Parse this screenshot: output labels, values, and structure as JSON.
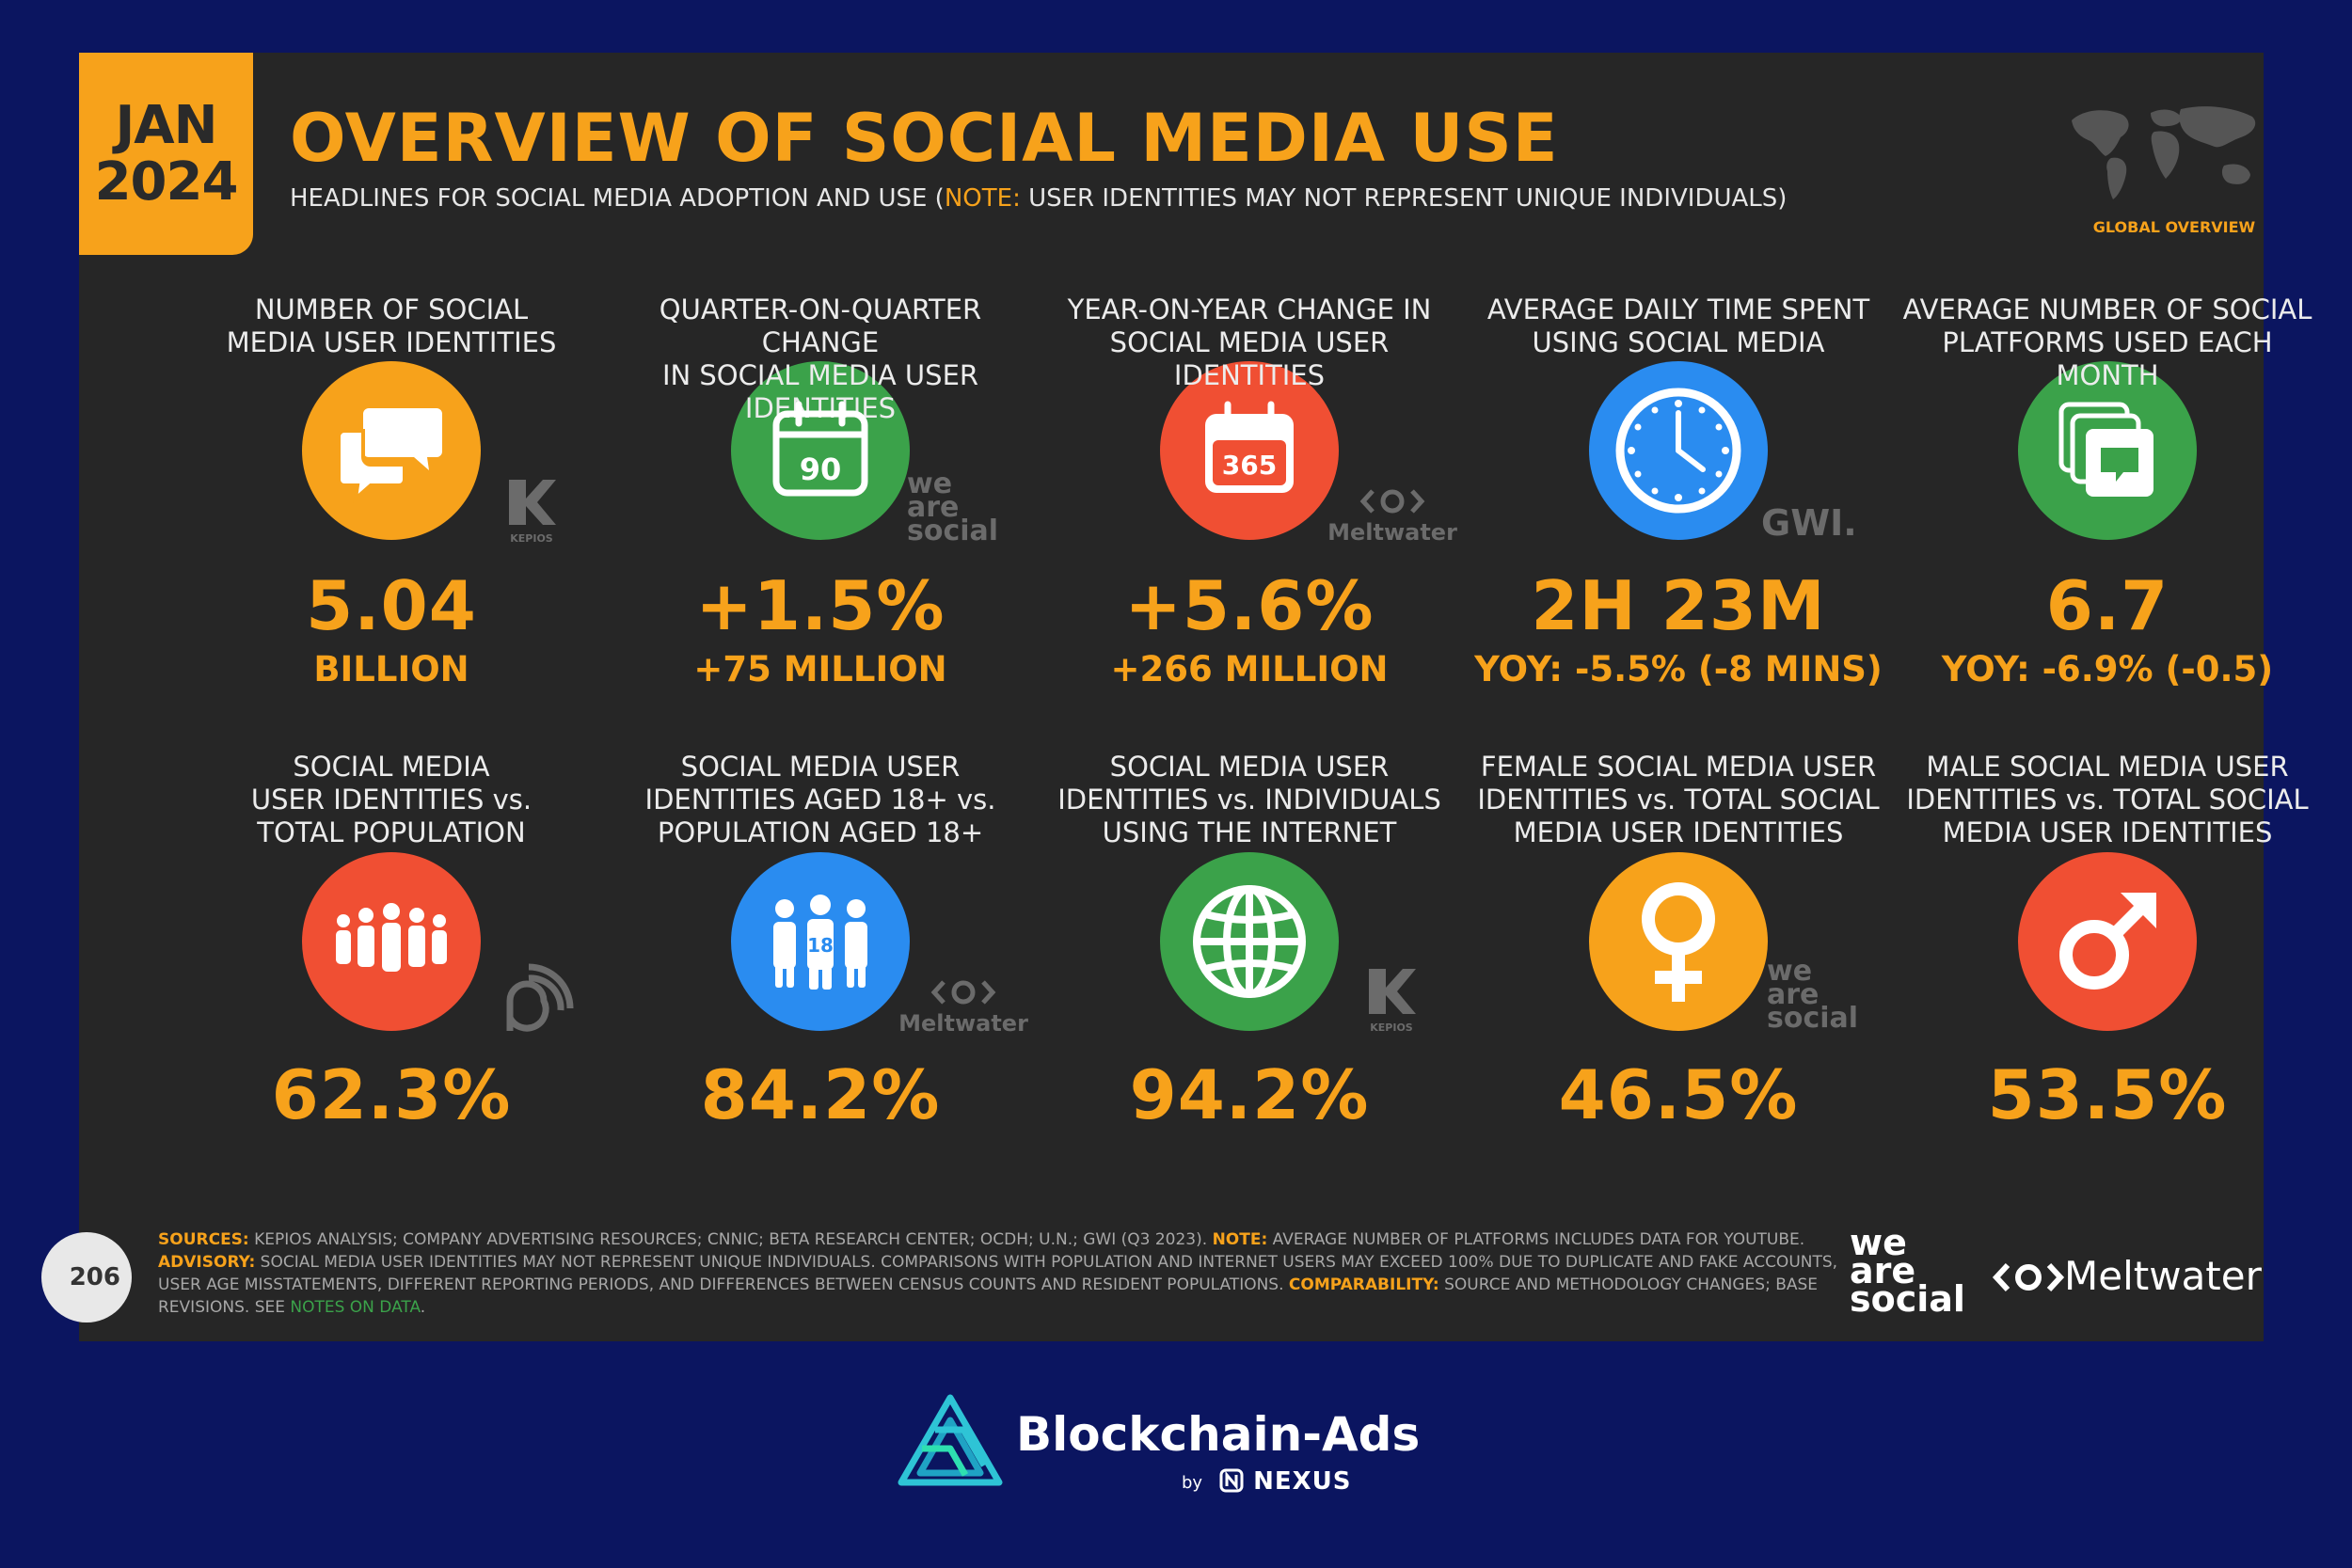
{
  "header": {
    "date_month": "JAN",
    "date_year": "2024",
    "title": "OVERVIEW OF SOCIAL MEDIA USE",
    "subtitle_pre": "HEADLINES FOR SOCIAL MEDIA ADOPTION AND USE (",
    "subtitle_note": "NOTE:",
    "subtitle_post": " USER IDENTITIES MAY NOT REPRESENT UNIQUE INDIVIDUALS)",
    "global_label": "GLOBAL OVERVIEW"
  },
  "metrics_row1": [
    {
      "label1": "NUMBER OF SOCIAL",
      "label2": "MEDIA USER IDENTITIES",
      "icon": "speech-bubbles-icon",
      "color": "#f7a21b",
      "value": "5.04",
      "sub": "BILLION"
    },
    {
      "label1": "QUARTER-ON-QUARTER CHANGE",
      "label2": "IN SOCIAL MEDIA USER IDENTITIES",
      "icon": "calendar-90-icon",
      "icon_text": "90",
      "color": "#3ba24a",
      "value": "+1.5%",
      "sub": "+75 MILLION"
    },
    {
      "label1": "YEAR-ON-YEAR CHANGE IN",
      "label2": "SOCIAL MEDIA USER IDENTITIES",
      "icon": "calendar-365-icon",
      "icon_text": "365",
      "color": "#f04f33",
      "value": "+5.6%",
      "sub": "+266 MILLION"
    },
    {
      "label1": "AVERAGE DAILY TIME SPENT",
      "label2": "USING SOCIAL MEDIA",
      "icon": "clock-icon",
      "color": "#2a8cf0",
      "value": "2H 23M",
      "sub": "YOY: -5.5% (-8 MINS)"
    },
    {
      "label1": "AVERAGE NUMBER OF SOCIAL",
      "label2": "PLATFORMS USED EACH MONTH",
      "icon": "stacked-windows-icon",
      "color": "#3ba24a",
      "value": "6.7",
      "sub": "YOY: -6.9% (-0.5)"
    }
  ],
  "metrics_row2": [
    {
      "label1": "SOCIAL MEDIA",
      "label2": "USER IDENTITIES vs.",
      "label3": "TOTAL POPULATION",
      "icon": "crowd-icon",
      "color": "#f04f33",
      "value": "62.3%"
    },
    {
      "label1": "SOCIAL MEDIA USER",
      "label2": "IDENTITIES AGED 18+ vs.",
      "label3": "POPULATION AGED 18+",
      "icon": "adults-18-icon",
      "icon_text": "18",
      "color": "#2a8cf0",
      "value": "84.2%"
    },
    {
      "label1": "SOCIAL MEDIA USER",
      "label2": "IDENTITIES vs. INDIVIDUALS",
      "label3": "USING THE INTERNET",
      "icon": "globe-icon",
      "color": "#3ba24a",
      "value": "94.2%"
    },
    {
      "label1": "FEMALE SOCIAL MEDIA USER",
      "label2": "IDENTITIES vs. TOTAL SOCIAL",
      "label3": "MEDIA USER IDENTITIES",
      "icon": "female-symbol-icon",
      "color": "#f7a21b",
      "value": "46.5%"
    },
    {
      "label1": "MALE SOCIAL MEDIA USER",
      "label2": "IDENTITIES vs. TOTAL SOCIAL",
      "label3": "MEDIA USER IDENTITIES",
      "icon": "male-symbol-icon",
      "color": "#f04f33",
      "value": "53.5%"
    }
  ],
  "watermarks": {
    "kepios": "KEPIOS",
    "we": "we",
    "are": "are",
    "social": "social",
    "meltwater": "Meltwater",
    "gwi": "GWI."
  },
  "footer": {
    "page_number": "206",
    "sources_key": "SOURCES:",
    "sources_text": " KEPIOS ANALYSIS; COMPANY ADVERTISING RESOURCES; CNNIC; BETA RESEARCH CENTER; OCDH; U.N.; GWI (Q3 2023). ",
    "note_key": "NOTE:",
    "note_text": " AVERAGE NUMBER OF PLATFORMS INCLUDES DATA FOR YOUTUBE.",
    "advisory_key": "ADVISORY:",
    "advisory_text": " SOCIAL MEDIA USER IDENTITIES MAY NOT REPRESENT UNIQUE INDIVIDUALS. COMPARISONS WITH POPULATION AND INTERNET USERS MAY EXCEED 100% DUE TO DUPLICATE AND FAKE ACCOUNTS, USER AGE MISSTATEMENTS, DIFFERENT REPORTING PERIODS, AND DIFFERENCES BETWEEN CENSUS COUNTS AND RESIDENT POPULATIONS. ",
    "comparability_key": "COMPARABILITY:",
    "comparability_text": " SOURCE AND METHODOLOGY CHANGES; BASE REVISIONS. SEE ",
    "notes_link": "NOTES ON DATA",
    "end": ".",
    "brand_we": "we",
    "brand_are": "are",
    "brand_social": "social",
    "brand_meltwater": "Meltwater"
  },
  "bottom_brand": {
    "name": "Blockchain-Ads",
    "by": "by",
    "nexus": "NEXUS"
  }
}
